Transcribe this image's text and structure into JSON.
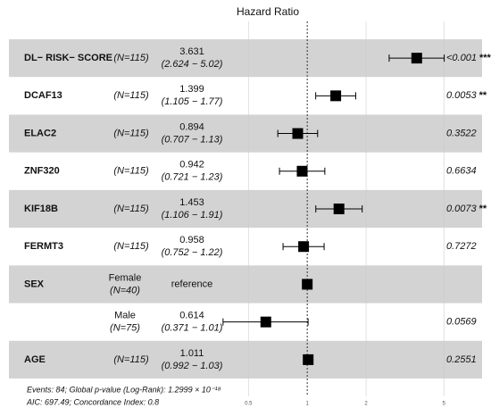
{
  "chart_data": {
    "type": "forest",
    "title": "Hazard Ratio",
    "variables": [
      "DL− RISK− SCORE",
      "DCAF13",
      "ELAC2",
      "ZNF320",
      "KIF18B",
      "FERMT3",
      "SEX",
      null,
      "AGE"
    ],
    "levels": [
      null,
      null,
      null,
      null,
      null,
      null,
      "Female",
      "Male",
      null
    ],
    "n_labels": [
      "(N=115)",
      "(N=115)",
      "(N=115)",
      "(N=115)",
      "(N=115)",
      "(N=115)",
      "(N=40)",
      "(N=75)",
      "(N=115)"
    ],
    "values": [
      3.631,
      1.399,
      0.894,
      0.942,
      1.453,
      0.958,
      1,
      0.614,
      1.011
    ],
    "reference_label": "reference",
    "reference_index": 6,
    "ci_low": [
      2.624,
      1.105,
      0.707,
      0.721,
      1.106,
      0.752,
      null,
      0.371,
      0.992
    ],
    "ci_high": [
      5.02,
      1.77,
      1.13,
      1.23,
      1.91,
      1.22,
      null,
      1.01,
      1.03
    ],
    "ci_labels": [
      "(2.624 − 5.02)",
      "(1.105 − 1.77)",
      "(0.707 − 1.13)",
      "(0.721 − 1.23)",
      "(1.106 − 1.91)",
      "(0.752 − 1.22)",
      null,
      "(0.371 − 1.01)",
      "(0.992 − 1.03)"
    ],
    "p_labels": [
      "<0.001",
      "0.0053",
      "0.3522",
      "0.6634",
      "0.0073",
      "0.7272",
      null,
      "0.0569",
      "0.2551"
    ],
    "stars": [
      "***",
      "**",
      null,
      null,
      "**",
      null,
      null,
      null,
      null
    ],
    "color": "#000000",
    "stripe_color": "#d3d3d3",
    "log_scale": true,
    "grid": true,
    "xlim": [
      0.36,
      5.6
    ],
    "xticks": [
      0.5,
      1,
      2,
      5
    ],
    "footer": [
      "Events: 84; Global p-value (Log-Rank): 1.2999 × 10⁻¹⁸",
      "AIC: 697.49; Concordance Index: 0.8"
    ]
  }
}
